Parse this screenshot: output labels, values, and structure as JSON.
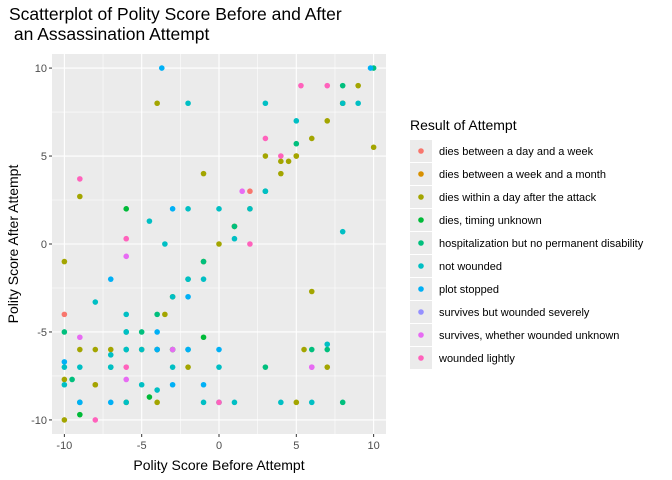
{
  "chart_data": {
    "type": "scatter",
    "title_lines": [
      "Scatterplot of Polity Score Before and After",
      " an Assassination Attempt"
    ],
    "xlabel": "Polity Score Before Attempt",
    "ylabel": "Polity Score After Attempt",
    "xlim": [
      -10.8,
      10.8
    ],
    "ylim": [
      -10.8,
      10.8
    ],
    "x_ticks": [
      -10,
      -5,
      0,
      5,
      10
    ],
    "y_ticks": [
      -10,
      -5,
      0,
      5,
      10
    ],
    "x_tick_labels": [
      "-10",
      "-5",
      "0",
      "5",
      "10"
    ],
    "y_tick_labels": [
      "-10",
      "-5",
      "0",
      "5",
      "10"
    ],
    "grid": true,
    "legend_position": "right",
    "legend_title": "Result of Attempt",
    "series": [
      {
        "name": "dies between a day and a week",
        "color": "#F8766D",
        "points": [
          [
            -10,
            -4
          ],
          [
            -8,
            -8
          ],
          [
            1,
            1
          ],
          [
            2,
            3
          ]
        ]
      },
      {
        "name": "dies between a week and a month",
        "color": "#D89000",
        "points": [
          [
            -4,
            -6
          ],
          [
            5,
            5
          ]
        ]
      },
      {
        "name": "dies within a day after the attack",
        "color": "#A3A500",
        "points": [
          [
            -10,
            -1
          ],
          [
            -10,
            -7.7
          ],
          [
            -10,
            -10
          ],
          [
            -9,
            -6
          ],
          [
            -9,
            2.7
          ],
          [
            -8,
            -6
          ],
          [
            -8,
            -8
          ],
          [
            -7,
            -6
          ],
          [
            -6,
            -9
          ],
          [
            -5,
            -6
          ],
          [
            -4,
            8
          ],
          [
            -4,
            -6
          ],
          [
            -4,
            -9
          ],
          [
            -3.5,
            -4
          ],
          [
            -3,
            -3
          ],
          [
            -3,
            -6
          ],
          [
            -2,
            -7
          ],
          [
            -1,
            -1
          ],
          [
            -1,
            4
          ],
          [
            0,
            0
          ],
          [
            1,
            1
          ],
          [
            2,
            2
          ],
          [
            3,
            5
          ],
          [
            4,
            4
          ],
          [
            4,
            4.7
          ],
          [
            4.5,
            4.7
          ],
          [
            5,
            -9
          ],
          [
            5,
            5
          ],
          [
            5.5,
            -6
          ],
          [
            6,
            6
          ],
          [
            6,
            -2.7
          ],
          [
            7,
            -7
          ],
          [
            7,
            7
          ],
          [
            8,
            8
          ],
          [
            8,
            8
          ],
          [
            9,
            9
          ],
          [
            10,
            5.5
          ]
        ]
      },
      {
        "name": "dies, timing unknown",
        "color": "#00BA38",
        "points": [
          [
            -9,
            -9.7
          ],
          [
            -6,
            2
          ],
          [
            -4.5,
            -8.7
          ],
          [
            -1,
            -5.3
          ]
        ]
      },
      {
        "name": "hospitalization but no permanent disability",
        "color": "#00BF7D",
        "points": [
          [
            -10,
            -5
          ],
          [
            -9.5,
            -7.7
          ],
          [
            -9,
            -9
          ],
          [
            -7,
            -7
          ],
          [
            -6,
            -5
          ],
          [
            -6,
            -6
          ],
          [
            -5,
            -5
          ],
          [
            -4,
            -4
          ],
          [
            -3,
            -6
          ],
          [
            -2,
            -2
          ],
          [
            -2,
            -6
          ],
          [
            -1,
            -1
          ],
          [
            1,
            1
          ],
          [
            3,
            -7
          ],
          [
            3,
            3
          ],
          [
            5,
            5.7
          ],
          [
            6,
            -6
          ],
          [
            7,
            -6
          ],
          [
            8,
            9
          ],
          [
            8,
            -9
          ],
          [
            10,
            10
          ]
        ]
      },
      {
        "name": "not wounded",
        "color": "#00BFC4",
        "points": [
          [
            -10,
            -7
          ],
          [
            -10,
            -8
          ],
          [
            -9,
            -7
          ],
          [
            -8,
            -3.3
          ],
          [
            -7,
            -6.3
          ],
          [
            -7,
            -7
          ],
          [
            -6,
            -4
          ],
          [
            -6,
            -5
          ],
          [
            -6,
            -6
          ],
          [
            -6,
            -9
          ],
          [
            -5,
            -6
          ],
          [
            -5,
            -8
          ],
          [
            -4.5,
            1.3
          ],
          [
            -4,
            -6
          ],
          [
            -4,
            -8.3
          ],
          [
            -3.5,
            0
          ],
          [
            -3,
            -3
          ],
          [
            -3,
            -7
          ],
          [
            -2,
            2
          ],
          [
            -2,
            -2
          ],
          [
            -2,
            8
          ],
          [
            -1,
            -2
          ],
          [
            -1,
            -9
          ],
          [
            0,
            2
          ],
          [
            0,
            -7
          ],
          [
            0,
            -9
          ],
          [
            1,
            0.3
          ],
          [
            1,
            -9
          ],
          [
            2,
            2
          ],
          [
            3,
            8
          ],
          [
            3,
            3
          ],
          [
            4,
            -9
          ],
          [
            5,
            7
          ],
          [
            6,
            -9
          ],
          [
            7,
            -5.7
          ],
          [
            8,
            0.7
          ],
          [
            8,
            8
          ],
          [
            9,
            8
          ]
        ]
      },
      {
        "name": "plot stopped",
        "color": "#00B0F6",
        "points": [
          [
            -10,
            -6.7
          ],
          [
            -9,
            -9
          ],
          [
            -7,
            -2
          ],
          [
            -7,
            -9
          ],
          [
            -4,
            -5
          ],
          [
            -4,
            -6
          ],
          [
            -3.7,
            10
          ],
          [
            -3,
            2
          ],
          [
            -3,
            -8
          ],
          [
            -2,
            -3
          ],
          [
            -2,
            -6
          ],
          [
            -1,
            -8
          ],
          [
            0,
            -6
          ],
          [
            9.8,
            10
          ]
        ]
      },
      {
        "name": "survives but wounded severely",
        "color": "#9590FF",
        "points": []
      },
      {
        "name": "survives, whether wounded unknown",
        "color": "#E76BF3",
        "points": [
          [
            -9,
            -5.3
          ],
          [
            -6,
            -0.7
          ],
          [
            -6,
            -7.7
          ],
          [
            -3,
            -6
          ],
          [
            1.5,
            3
          ],
          [
            6,
            -7
          ],
          [
            6,
            -7
          ]
        ]
      },
      {
        "name": "wounded lightly",
        "color": "#FF62BC",
        "points": [
          [
            -9,
            3.7
          ],
          [
            -8,
            -10
          ],
          [
            -6,
            0.3
          ],
          [
            -6,
            -7
          ],
          [
            0,
            -9
          ],
          [
            2,
            0
          ],
          [
            3,
            6
          ],
          [
            4,
            5
          ],
          [
            5.3,
            9
          ],
          [
            7,
            9
          ]
        ]
      }
    ]
  }
}
